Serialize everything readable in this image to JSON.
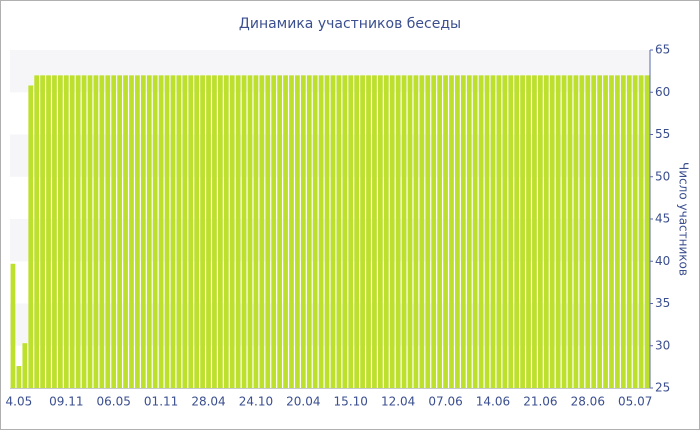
{
  "chart_data": {
    "type": "bar",
    "title": "Динамика участников беседы",
    "y_axis_label": "Число участников",
    "color": "#bde02c",
    "ylim": [
      25,
      65
    ],
    "yticks": [
      25,
      30,
      35,
      40,
      45,
      50,
      55,
      60,
      65
    ],
    "grid": true,
    "y_axis_side": "right",
    "categories": [
      null,
      "4.05",
      null,
      null,
      null,
      null,
      null,
      null,
      null,
      "09.11",
      null,
      null,
      null,
      null,
      null,
      null,
      null,
      "06.05",
      null,
      null,
      null,
      null,
      null,
      null,
      null,
      "01.11",
      null,
      null,
      null,
      null,
      null,
      null,
      null,
      "28.04",
      null,
      null,
      null,
      null,
      null,
      null,
      null,
      "24.10",
      null,
      null,
      null,
      null,
      null,
      null,
      null,
      "20.04",
      null,
      null,
      null,
      null,
      null,
      null,
      null,
      "15.10",
      null,
      null,
      null,
      null,
      null,
      null,
      null,
      "12.04",
      null,
      null,
      null,
      null,
      null,
      null,
      null,
      "07.06",
      null,
      null,
      null,
      null,
      null,
      null,
      null,
      "14.06",
      null,
      null,
      null,
      null,
      null,
      null,
      null,
      "21.06",
      null,
      null,
      null,
      null,
      null,
      null,
      null,
      "28.06",
      null,
      null,
      null,
      null,
      null,
      null,
      null,
      "05.07",
      null,
      null
    ],
    "values": [
      39.7,
      27.6,
      30.3,
      60.8,
      62,
      62,
      62,
      62,
      62,
      62,
      62,
      62,
      62,
      62,
      62,
      62,
      62,
      62,
      62,
      62,
      62,
      62,
      62,
      62,
      62,
      62,
      62,
      62,
      62,
      62,
      62,
      62,
      62,
      62,
      62,
      62,
      62,
      62,
      62,
      62,
      62,
      62,
      62,
      62,
      62,
      62,
      62,
      62,
      62,
      62,
      62,
      62,
      62,
      62,
      62,
      62,
      62,
      62,
      62,
      62,
      62,
      62,
      62,
      62,
      62,
      62,
      62,
      62,
      62,
      62,
      62,
      62,
      62,
      62,
      62,
      62,
      62,
      62,
      62,
      62,
      62,
      62,
      62,
      62,
      62,
      62,
      62,
      62,
      62,
      62,
      62,
      62,
      62,
      62,
      62,
      62,
      62,
      62,
      62,
      62,
      62,
      62,
      62,
      62,
      62,
      62,
      62,
      62
    ]
  }
}
